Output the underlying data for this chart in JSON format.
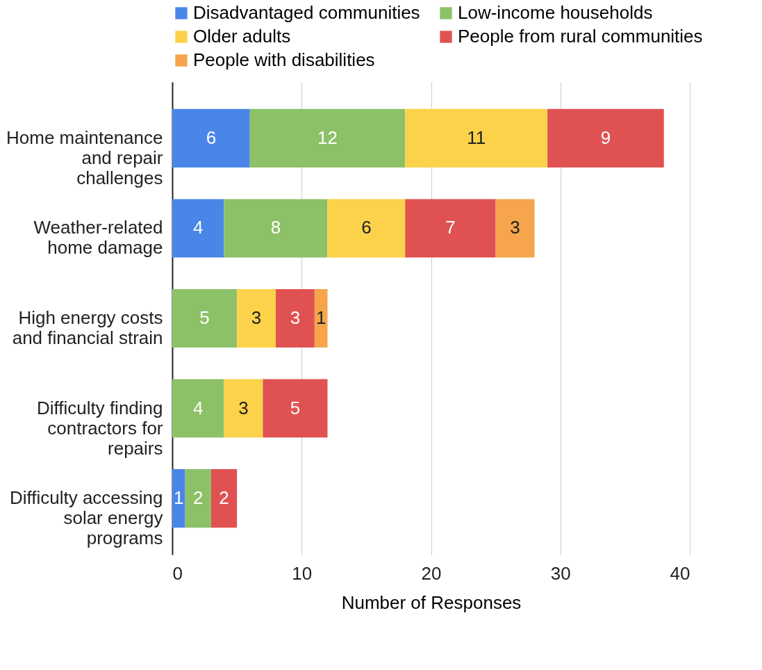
{
  "chart_data": {
    "type": "bar",
    "orientation": "horizontal",
    "stacked": true,
    "xlabel": "Number of Responses",
    "categories": [
      "Home maintenance and repair challenges",
      "Weather-related home damage",
      "High energy costs and financial strain",
      "Difficulty finding contractors for repairs",
      "Difficulty accessing solar energy programs"
    ],
    "series": [
      {
        "name": "Disadvantaged communities",
        "color": "#4a86e8",
        "values": [
          6,
          4,
          null,
          null,
          1
        ]
      },
      {
        "name": "Low-income households",
        "color": "#8cc168",
        "values": [
          12,
          8,
          5,
          4,
          2
        ]
      },
      {
        "name": "Older adults",
        "color": "#fcd24a",
        "values": [
          11,
          6,
          3,
          3,
          null
        ]
      },
      {
        "name": "People from rural communities",
        "color": "#e05252",
        "values": [
          9,
          7,
          3,
          5,
          2
        ]
      },
      {
        "name": "People with disabilities",
        "color": "#f6a54c",
        "values": [
          null,
          3,
          1,
          null,
          null
        ]
      }
    ],
    "xlim": [
      0,
      40
    ],
    "xticks": [
      0,
      10,
      20,
      30,
      40
    ],
    "grid": "x",
    "legend": "top",
    "data_labels": true
  }
}
